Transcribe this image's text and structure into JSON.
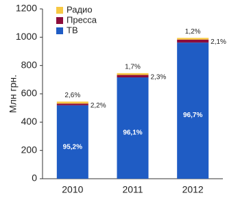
{
  "chart_data": {
    "type": "stacked-bar",
    "y_label": "Млн грн.",
    "categories": [
      "2010",
      "2011",
      "2012"
    ],
    "series": [
      {
        "name": "ТВ",
        "color": "#1f5cc4",
        "values": [
          519,
          716,
          962
        ],
        "value_labels": [
          "95,2%",
          "96,1%",
          "96,7%"
        ]
      },
      {
        "name": "Пресса",
        "color": "#8c0c3c",
        "values": [
          12,
          17,
          21
        ],
        "value_labels": [
          "2,2%",
          "2,3%",
          "2,1%"
        ]
      },
      {
        "name": "Радио",
        "color": "#f7c843",
        "values": [
          14,
          13,
          12
        ],
        "value_labels": [
          "2,6%",
          "1,7%",
          "1,2%"
        ]
      }
    ],
    "ylim": [
      0,
      1200
    ],
    "yticks": [
      0,
      200,
      400,
      600,
      800,
      1000,
      1200
    ]
  }
}
